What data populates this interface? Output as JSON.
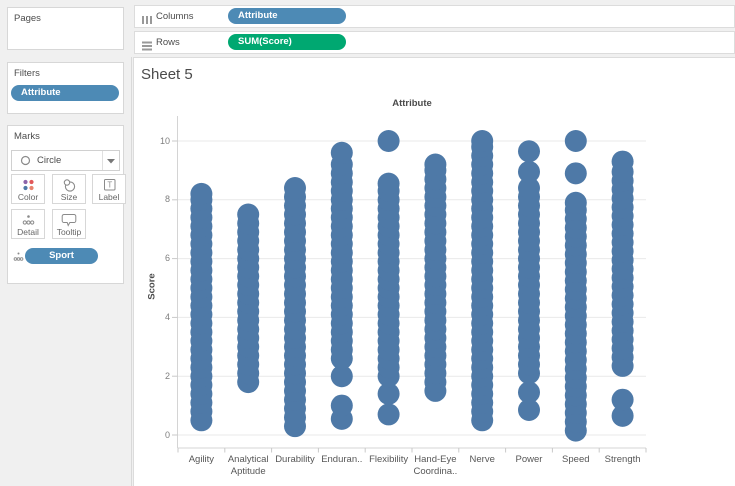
{
  "colors": {
    "panel_bg": "#f0f0f0",
    "pill_blue": "#4d8ab5",
    "pill_green": "#00a871",
    "mark_blue": "#4e79a7",
    "gridline": "#e9e9e9",
    "axis_line": "#d4d4d4",
    "tick_line": "#c9c9c9"
  },
  "sidebar": {
    "pages": {
      "title": "Pages"
    },
    "filters": {
      "title": "Filters",
      "pill": "Attribute"
    },
    "marks": {
      "title": "Marks",
      "mark_type": "Circle",
      "buttons": [
        {
          "label": "Color"
        },
        {
          "label": "Size"
        },
        {
          "label": "Label"
        },
        {
          "label": "Detail"
        },
        {
          "label": "Tooltip"
        }
      ],
      "detail_pill": "Sport"
    }
  },
  "shelves": {
    "columns_label": "Columns",
    "columns_pill": "Attribute",
    "rows_label": "Rows",
    "rows_pill": "SUM(Score)"
  },
  "sheet": {
    "title": "Sheet 5"
  },
  "chart_data": {
    "type": "scatter",
    "mark": "circle",
    "title": "Attribute",
    "ylabel": "Score",
    "ylim": [
      0,
      10
    ],
    "yticks": [
      0,
      2,
      4,
      6,
      8,
      10
    ],
    "grid": "horizontal",
    "categories": [
      "Agility",
      "Analytical Aptitude",
      "Durability",
      "Enduran..",
      "Flexibility",
      "Hand-Eye Coordina..",
      "Nerve",
      "Power",
      "Speed",
      "Strength"
    ],
    "series": [
      {
        "name": "Agility",
        "scores": [
          0.5,
          0.8,
          1.1,
          1.4,
          1.7,
          2.0,
          2.3,
          2.6,
          2.9,
          3.2,
          3.5,
          3.8,
          4.1,
          4.4,
          4.7,
          5.0,
          5.3,
          5.6,
          5.9,
          6.2,
          6.5,
          6.8,
          7.1,
          7.4,
          7.7,
          8.0,
          8.2
        ]
      },
      {
        "name": "Analytical Aptitude",
        "scores": [
          1.8,
          2.1,
          2.4,
          2.7,
          3.0,
          3.3,
          3.6,
          3.9,
          4.2,
          4.5,
          4.8,
          5.1,
          5.4,
          5.7,
          6.0,
          6.3,
          6.6,
          6.9,
          7.2,
          7.5
        ]
      },
      {
        "name": "Durability",
        "scores": [
          0.3,
          0.6,
          0.9,
          1.2,
          1.5,
          1.8,
          2.1,
          2.4,
          2.7,
          3.0,
          3.3,
          3.6,
          3.9,
          4.2,
          4.5,
          4.8,
          5.1,
          5.4,
          5.7,
          6.0,
          6.3,
          6.6,
          6.9,
          7.2,
          7.5,
          7.8,
          8.1,
          8.4
        ]
      },
      {
        "name": "Endurance",
        "scores": [
          0.55,
          1.0,
          2.0,
          2.6,
          2.9,
          3.2,
          3.5,
          3.8,
          4.1,
          4.4,
          4.7,
          5.0,
          5.3,
          5.6,
          5.9,
          6.2,
          6.5,
          6.8,
          7.1,
          7.4,
          7.7,
          8.0,
          8.3,
          8.6,
          8.9,
          9.2,
          9.6
        ]
      },
      {
        "name": "Flexibility",
        "scores": [
          0.7,
          1.4,
          2.0,
          2.3,
          2.6,
          2.9,
          3.2,
          3.5,
          3.8,
          4.1,
          4.4,
          4.7,
          5.0,
          5.3,
          5.6,
          5.9,
          6.2,
          6.5,
          6.8,
          7.1,
          7.4,
          7.7,
          8.0,
          8.3,
          8.55,
          10.0
        ]
      },
      {
        "name": "Hand-Eye Coordination",
        "scores": [
          1.5,
          1.8,
          2.1,
          2.4,
          2.7,
          3.0,
          3.3,
          3.6,
          3.9,
          4.2,
          4.5,
          4.8,
          5.1,
          5.4,
          5.7,
          6.0,
          6.3,
          6.6,
          6.9,
          7.2,
          7.5,
          7.8,
          8.1,
          8.4,
          8.7,
          9.0,
          9.2
        ]
      },
      {
        "name": "Nerve",
        "scores": [
          0.5,
          0.8,
          1.1,
          1.4,
          1.7,
          2.0,
          2.3,
          2.6,
          2.9,
          3.2,
          3.5,
          3.8,
          4.1,
          4.4,
          4.7,
          5.0,
          5.3,
          5.6,
          5.9,
          6.2,
          6.5,
          6.8,
          7.1,
          7.4,
          7.7,
          8.0,
          8.3,
          8.6,
          8.9,
          9.2,
          9.5,
          9.8,
          10.0
        ]
      },
      {
        "name": "Power",
        "scores": [
          0.85,
          1.45,
          2.1,
          2.4,
          2.7,
          3.0,
          3.3,
          3.6,
          3.9,
          4.2,
          4.5,
          4.8,
          5.1,
          5.4,
          5.7,
          6.0,
          6.3,
          6.6,
          6.9,
          7.2,
          7.5,
          7.8,
          8.1,
          8.4,
          8.95,
          9.65
        ]
      },
      {
        "name": "Speed",
        "scores": [
          0.15,
          0.45,
          0.75,
          1.05,
          1.35,
          1.65,
          1.95,
          2.25,
          2.55,
          2.85,
          3.15,
          3.45,
          3.75,
          4.05,
          4.35,
          4.65,
          4.95,
          5.25,
          5.55,
          5.85,
          6.15,
          6.45,
          6.75,
          7.05,
          7.35,
          7.65,
          7.9,
          8.9,
          10.0
        ]
      },
      {
        "name": "Strength",
        "scores": [
          0.65,
          1.2,
          2.35,
          2.65,
          2.95,
          3.25,
          3.55,
          3.85,
          4.15,
          4.45,
          4.75,
          5.05,
          5.35,
          5.65,
          5.95,
          6.25,
          6.55,
          6.85,
          7.15,
          7.45,
          7.75,
          8.05,
          8.35,
          8.65,
          8.95,
          9.3
        ]
      }
    ]
  }
}
